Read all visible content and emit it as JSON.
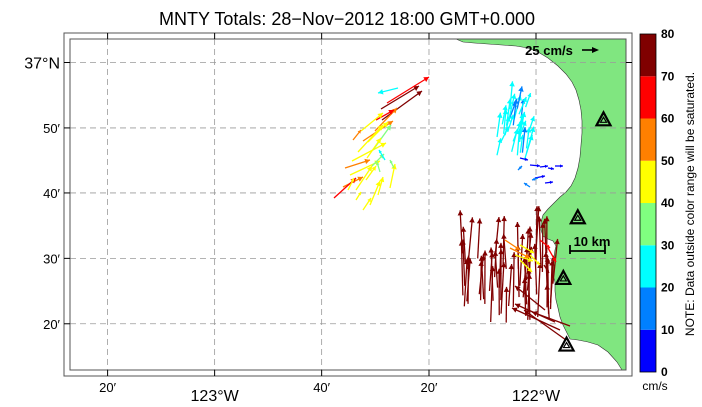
{
  "title": "MNTY Totals: 28−Nov−2012 18:00 GMT+0.000",
  "map": {
    "lon_ticks": [
      {
        "lon": -123.333,
        "label": "20′"
      },
      {
        "lon": -123.0,
        "label": "123°W"
      },
      {
        "lon": -122.667,
        "label": "40′"
      },
      {
        "lon": -122.333,
        "label": "20′"
      },
      {
        "lon": -122.0,
        "label": "122°W"
      }
    ],
    "lat_ticks": [
      {
        "lat": 37.0,
        "label": "37°N"
      },
      {
        "lat": 36.833,
        "label": "50′"
      },
      {
        "lat": 36.667,
        "label": "40′"
      },
      {
        "lat": 36.5,
        "label": "30′"
      },
      {
        "lat": 36.333,
        "label": "20′"
      }
    ],
    "lon_range": [
      -123.45,
      -121.72
    ],
    "lat_range": [
      36.215,
      37.06
    ],
    "land_color": "#80e680",
    "stations": [
      {
        "lon": -121.79,
        "lat": 36.855
      },
      {
        "lon": -121.87,
        "lat": 36.605
      },
      {
        "lon": -121.915,
        "lat": 36.45
      },
      {
        "lon": -121.905,
        "lat": 36.28
      }
    ]
  },
  "scale_vector": {
    "label": "25 cm/s"
  },
  "scale_bar": {
    "label": "10 km"
  },
  "colorbar": {
    "unit": "cm/s",
    "ticks": [
      "0",
      "10",
      "20",
      "30",
      "40",
      "50",
      "60",
      "70",
      "80"
    ],
    "min": 0,
    "max": 80,
    "colors": [
      "#0000ff",
      "#0080ff",
      "#00ffff",
      "#80ff80",
      "#ffff00",
      "#ff8000",
      "#ff0000",
      "#800000"
    ],
    "note": "NOTE: Data outside color range will be saturated."
  }
}
